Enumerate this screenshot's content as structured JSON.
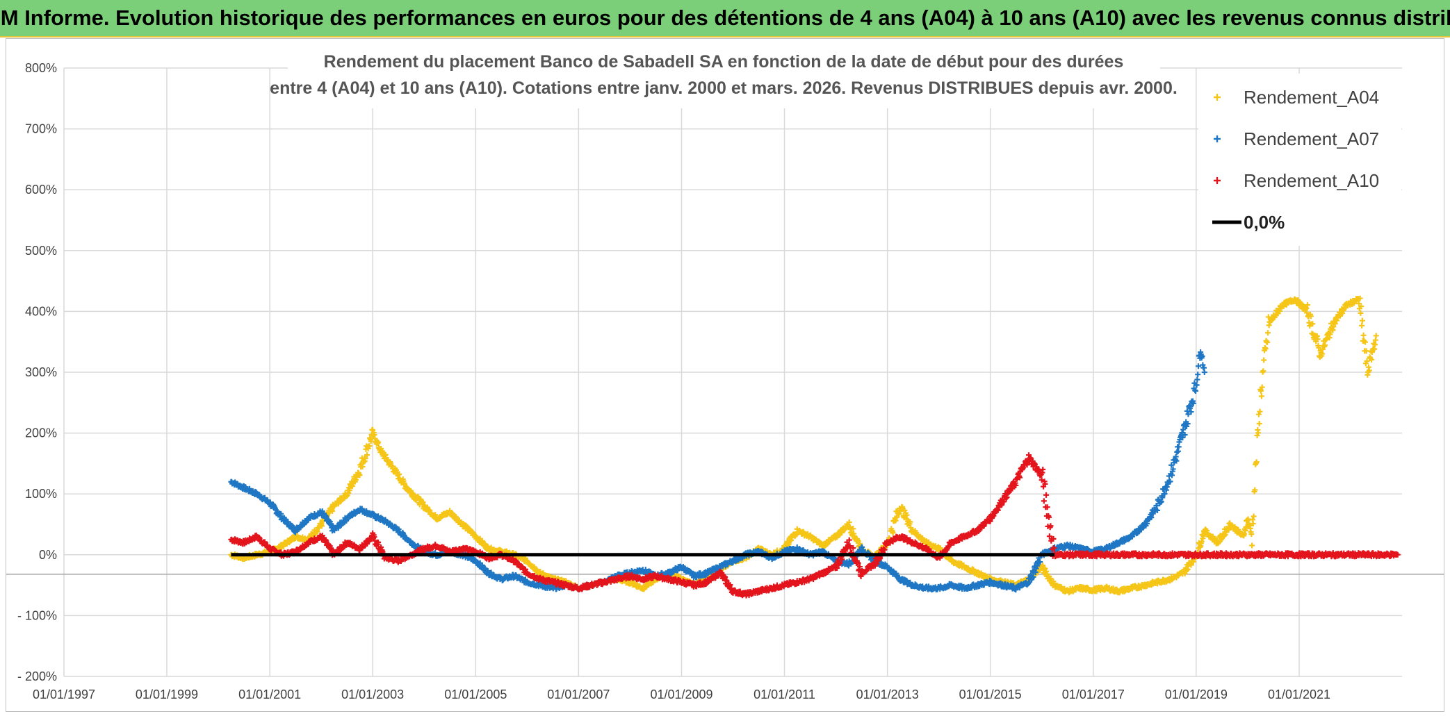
{
  "banner": {
    "title": "ADAM Informe. Evolution historique des performances en euros pour des détentions de 4 ans (A04) à 10 ans (A10) avec les revenus connus distribués"
  },
  "chart_data": {
    "type": "scatter",
    "title_lines": [
      "Rendement du placement Banco de Sabadell SA en fonction de la date de début pour des durées",
      "entre 4 (A04) et 10 ans (A10). Cotations entre janv. 2000 et mars. 2026. Revenus DISTRIBUES depuis avr. 2000."
    ],
    "x_axis": {
      "type": "date",
      "min": "1997-01-01",
      "max": "2023-01-01",
      "tick_labels": [
        "01/01/1997",
        "01/01/1999",
        "01/01/2001",
        "01/01/2003",
        "01/01/2005",
        "01/01/2007",
        "01/01/2009",
        "01/01/2011",
        "01/01/2013",
        "01/01/2015",
        "01/01/2017",
        "01/01/2019",
        "01/01/2021"
      ]
    },
    "y_axis": {
      "min": -200,
      "max": 800,
      "step": 100,
      "unit": "%",
      "tick_labels": [
        "- 200%",
        "- 100%",
        "0%",
        "100%",
        "200%",
        "300%",
        "400%",
        "500%",
        "600%",
        "700%",
        "800%"
      ]
    },
    "grid": true,
    "legend_position": "top-right",
    "series": [
      {
        "name": "Rendement_A04",
        "color": "#f5c518",
        "marker": "+",
        "points": [
          [
            "2000-04-01",
            0
          ],
          [
            "2000-07-01",
            -5
          ],
          [
            "2000-10-01",
            0
          ],
          [
            "2001-01-01",
            5
          ],
          [
            "2001-04-01",
            15
          ],
          [
            "2001-07-01",
            30
          ],
          [
            "2001-10-01",
            25
          ],
          [
            "2002-01-01",
            50
          ],
          [
            "2002-04-01",
            80
          ],
          [
            "2002-07-01",
            100
          ],
          [
            "2002-10-01",
            140
          ],
          [
            "2003-01-01",
            200
          ],
          [
            "2003-03-01",
            170
          ],
          [
            "2003-06-01",
            140
          ],
          [
            "2003-09-01",
            110
          ],
          [
            "2004-01-01",
            80
          ],
          [
            "2004-04-01",
            60
          ],
          [
            "2004-07-01",
            70
          ],
          [
            "2004-10-01",
            50
          ],
          [
            "2005-01-01",
            30
          ],
          [
            "2005-04-01",
            10
          ],
          [
            "2005-07-01",
            5
          ],
          [
            "2005-10-01",
            0
          ],
          [
            "2006-01-01",
            -10
          ],
          [
            "2006-04-01",
            -30
          ],
          [
            "2006-07-01",
            -40
          ],
          [
            "2006-10-01",
            -45
          ],
          [
            "2007-01-01",
            -55
          ],
          [
            "2007-04-01",
            -50
          ],
          [
            "2007-07-01",
            -45
          ],
          [
            "2007-10-01",
            -40
          ],
          [
            "2008-01-01",
            -45
          ],
          [
            "2008-04-01",
            -55
          ],
          [
            "2008-07-01",
            -40
          ],
          [
            "2008-10-01",
            -30
          ],
          [
            "2009-01-01",
            -40
          ],
          [
            "2009-04-01",
            -50
          ],
          [
            "2009-07-01",
            -35
          ],
          [
            "2009-10-01",
            -25
          ],
          [
            "2010-01-01",
            -10
          ],
          [
            "2010-04-01",
            -5
          ],
          [
            "2010-07-01",
            10
          ],
          [
            "2010-10-01",
            0
          ],
          [
            "2011-01-01",
            10
          ],
          [
            "2011-04-01",
            40
          ],
          [
            "2011-07-01",
            30
          ],
          [
            "2011-10-01",
            15
          ],
          [
            "2012-01-01",
            30
          ],
          [
            "2012-04-01",
            50
          ],
          [
            "2012-07-01",
            10
          ],
          [
            "2012-10-01",
            -5
          ],
          [
            "2013-01-01",
            20
          ],
          [
            "2013-04-01",
            80
          ],
          [
            "2013-07-01",
            40
          ],
          [
            "2013-10-01",
            20
          ],
          [
            "2014-01-01",
            10
          ],
          [
            "2014-04-01",
            -10
          ],
          [
            "2014-07-01",
            -20
          ],
          [
            "2014-10-01",
            -30
          ],
          [
            "2015-01-01",
            -40
          ],
          [
            "2015-04-01",
            -45
          ],
          [
            "2015-07-01",
            -50
          ],
          [
            "2015-10-01",
            -40
          ],
          [
            "2016-01-01",
            -20
          ],
          [
            "2016-04-01",
            -50
          ],
          [
            "2016-07-01",
            -60
          ],
          [
            "2016-10-01",
            -55
          ],
          [
            "2017-01-01",
            -58
          ],
          [
            "2017-04-01",
            -55
          ],
          [
            "2017-07-01",
            -60
          ],
          [
            "2017-10-01",
            -55
          ],
          [
            "2018-01-01",
            -50
          ],
          [
            "2018-04-01",
            -45
          ],
          [
            "2018-07-01",
            -40
          ],
          [
            "2018-10-01",
            -30
          ],
          [
            "2019-01-01",
            0
          ],
          [
            "2019-03-01",
            40
          ],
          [
            "2019-06-01",
            20
          ],
          [
            "2019-09-01",
            50
          ],
          [
            "2019-12-01",
            30
          ],
          [
            "2020-01-01",
            60
          ],
          [
            "2020-02-01",
            30
          ],
          [
            "2020-03-01",
            150
          ],
          [
            "2020-04-01",
            260
          ],
          [
            "2020-06-01",
            380
          ],
          [
            "2020-09-01",
            410
          ],
          [
            "2020-12-01",
            420
          ],
          [
            "2021-03-01",
            400
          ],
          [
            "2021-06-01",
            330
          ],
          [
            "2021-09-01",
            380
          ],
          [
            "2021-12-01",
            410
          ],
          [
            "2022-03-01",
            420
          ],
          [
            "2022-05-01",
            300
          ],
          [
            "2022-07-01",
            360
          ]
        ]
      },
      {
        "name": "Rendement_A07",
        "color": "#1f77c4",
        "marker": "+",
        "points": [
          [
            "2000-04-01",
            120
          ],
          [
            "2000-07-01",
            110
          ],
          [
            "2000-10-01",
            100
          ],
          [
            "2001-01-01",
            85
          ],
          [
            "2001-04-01",
            60
          ],
          [
            "2001-07-01",
            40
          ],
          [
            "2001-10-01",
            60
          ],
          [
            "2002-01-01",
            70
          ],
          [
            "2002-04-01",
            40
          ],
          [
            "2002-07-01",
            60
          ],
          [
            "2002-10-01",
            75
          ],
          [
            "2003-01-01",
            65
          ],
          [
            "2003-04-01",
            55
          ],
          [
            "2003-07-01",
            40
          ],
          [
            "2003-10-01",
            20
          ],
          [
            "2004-01-01",
            5
          ],
          [
            "2004-04-01",
            0
          ],
          [
            "2004-07-01",
            5
          ],
          [
            "2004-10-01",
            0
          ],
          [
            "2005-01-01",
            -10
          ],
          [
            "2005-04-01",
            -30
          ],
          [
            "2005-07-01",
            -40
          ],
          [
            "2005-10-01",
            -35
          ],
          [
            "2006-01-01",
            -45
          ],
          [
            "2006-04-01",
            -50
          ],
          [
            "2006-07-01",
            -55
          ],
          [
            "2006-10-01",
            -50
          ],
          [
            "2007-01-01",
            -55
          ],
          [
            "2007-04-01",
            -50
          ],
          [
            "2007-07-01",
            -45
          ],
          [
            "2007-10-01",
            -35
          ],
          [
            "2008-01-01",
            -30
          ],
          [
            "2008-04-01",
            -25
          ],
          [
            "2008-07-01",
            -35
          ],
          [
            "2008-10-01",
            -30
          ],
          [
            "2009-01-01",
            -20
          ],
          [
            "2009-04-01",
            -35
          ],
          [
            "2009-07-01",
            -30
          ],
          [
            "2009-10-01",
            -20
          ],
          [
            "2010-01-01",
            -10
          ],
          [
            "2010-04-01",
            0
          ],
          [
            "2010-07-01",
            5
          ],
          [
            "2010-10-01",
            -5
          ],
          [
            "2011-01-01",
            5
          ],
          [
            "2011-04-01",
            10
          ],
          [
            "2011-07-01",
            0
          ],
          [
            "2011-10-01",
            5
          ],
          [
            "2012-01-01",
            -10
          ],
          [
            "2012-04-01",
            -15
          ],
          [
            "2012-07-01",
            10
          ],
          [
            "2012-10-01",
            -10
          ],
          [
            "2013-01-01",
            -20
          ],
          [
            "2013-04-01",
            -40
          ],
          [
            "2013-07-01",
            -50
          ],
          [
            "2013-10-01",
            -55
          ],
          [
            "2014-01-01",
            -55
          ],
          [
            "2014-04-01",
            -50
          ],
          [
            "2014-07-01",
            -55
          ],
          [
            "2014-10-01",
            -50
          ],
          [
            "2015-01-01",
            -45
          ],
          [
            "2015-04-01",
            -50
          ],
          [
            "2015-07-01",
            -55
          ],
          [
            "2015-10-01",
            -45
          ],
          [
            "2016-01-01",
            0
          ],
          [
            "2016-04-01",
            10
          ],
          [
            "2016-07-01",
            15
          ],
          [
            "2016-10-01",
            10
          ],
          [
            "2017-01-01",
            5
          ],
          [
            "2017-04-01",
            10
          ],
          [
            "2017-07-01",
            20
          ],
          [
            "2017-10-01",
            30
          ],
          [
            "2018-01-01",
            50
          ],
          [
            "2018-04-01",
            80
          ],
          [
            "2018-07-01",
            130
          ],
          [
            "2018-10-01",
            200
          ],
          [
            "2019-01-01",
            280
          ],
          [
            "2019-02-01",
            340
          ],
          [
            "2019-03-01",
            300
          ]
        ]
      },
      {
        "name": "Rendement_A10",
        "color": "#e3141c",
        "marker": "+",
        "points": [
          [
            "2000-04-01",
            25
          ],
          [
            "2000-07-01",
            20
          ],
          [
            "2000-10-01",
            30
          ],
          [
            "2001-01-01",
            10
          ],
          [
            "2001-04-01",
            0
          ],
          [
            "2001-07-01",
            5
          ],
          [
            "2001-10-01",
            20
          ],
          [
            "2002-01-01",
            30
          ],
          [
            "2002-04-01",
            0
          ],
          [
            "2002-07-01",
            20
          ],
          [
            "2002-10-01",
            10
          ],
          [
            "2003-01-01",
            30
          ],
          [
            "2003-04-01",
            -5
          ],
          [
            "2003-07-01",
            -10
          ],
          [
            "2003-10-01",
            0
          ],
          [
            "2004-01-01",
            10
          ],
          [
            "2004-04-01",
            15
          ],
          [
            "2004-07-01",
            5
          ],
          [
            "2004-10-01",
            10
          ],
          [
            "2005-01-01",
            5
          ],
          [
            "2005-04-01",
            -5
          ],
          [
            "2005-07-01",
            0
          ],
          [
            "2005-10-01",
            -10
          ],
          [
            "2006-01-01",
            -30
          ],
          [
            "2006-04-01",
            -40
          ],
          [
            "2006-07-01",
            -45
          ],
          [
            "2006-10-01",
            -50
          ],
          [
            "2007-01-01",
            -55
          ],
          [
            "2007-04-01",
            -50
          ],
          [
            "2007-07-01",
            -45
          ],
          [
            "2007-10-01",
            -40
          ],
          [
            "2008-01-01",
            -35
          ],
          [
            "2008-04-01",
            -40
          ],
          [
            "2008-07-01",
            -35
          ],
          [
            "2008-10-01",
            -40
          ],
          [
            "2009-01-01",
            -45
          ],
          [
            "2009-04-01",
            -50
          ],
          [
            "2009-07-01",
            -45
          ],
          [
            "2009-10-01",
            -30
          ],
          [
            "2010-01-01",
            -60
          ],
          [
            "2010-04-01",
            -65
          ],
          [
            "2010-07-01",
            -60
          ],
          [
            "2010-10-01",
            -55
          ],
          [
            "2011-01-01",
            -50
          ],
          [
            "2011-04-01",
            -45
          ],
          [
            "2011-07-01",
            -40
          ],
          [
            "2011-10-01",
            -30
          ],
          [
            "2012-01-01",
            -20
          ],
          [
            "2012-04-01",
            20
          ],
          [
            "2012-07-01",
            -30
          ],
          [
            "2012-10-01",
            -15
          ],
          [
            "2013-01-01",
            20
          ],
          [
            "2013-04-01",
            30
          ],
          [
            "2013-07-01",
            20
          ],
          [
            "2013-10-01",
            10
          ],
          [
            "2014-01-01",
            -5
          ],
          [
            "2014-04-01",
            20
          ],
          [
            "2014-07-01",
            30
          ],
          [
            "2014-10-01",
            40
          ],
          [
            "2015-01-01",
            60
          ],
          [
            "2015-04-01",
            90
          ],
          [
            "2015-07-01",
            120
          ],
          [
            "2015-10-01",
            160
          ],
          [
            "2016-01-01",
            130
          ],
          [
            "2016-04-01",
            0
          ],
          [
            "2017-01-01",
            0
          ],
          [
            "2018-01-01",
            0
          ],
          [
            "2019-01-01",
            0
          ],
          [
            "2020-01-01",
            0
          ],
          [
            "2021-01-01",
            0
          ],
          [
            "2022-01-01",
            0
          ],
          [
            "2022-12-01",
            0
          ]
        ]
      },
      {
        "name": "0,0%",
        "color": "#000000",
        "marker": "line",
        "points": [
          [
            "2000-04-01",
            0
          ],
          [
            "2016-04-01",
            0
          ]
        ]
      }
    ]
  }
}
